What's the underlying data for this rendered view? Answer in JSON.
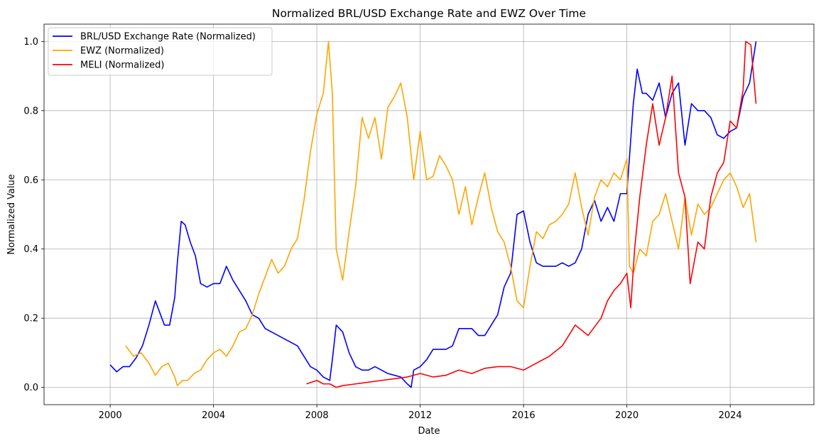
{
  "chart_data": {
    "type": "line",
    "title": "Normalized BRL/USD Exchange Rate and EWZ Over Time",
    "xlabel": "Date",
    "ylabel": "Normalized Value",
    "xlim": [
      1997.44,
      2027.24
    ],
    "ylim": [
      -0.05,
      1.05
    ],
    "x_ticks": [
      2000,
      2004,
      2008,
      2012,
      2016,
      2020,
      2024
    ],
    "x_tick_labels": [
      "2000",
      "2004",
      "2008",
      "2012",
      "2016",
      "2020",
      "2024"
    ],
    "y_ticks": [
      0.0,
      0.2,
      0.4,
      0.6,
      0.8,
      1.0
    ],
    "y_tick_labels": [
      "0.0",
      "0.2",
      "0.4",
      "0.6",
      "0.8",
      "1.0"
    ],
    "grid": true,
    "legend_position": "top-left",
    "series": [
      {
        "name": "BRL/USD Exchange Rate (Normalized)",
        "color": "#0000ff",
        "points": [
          [
            2000.0,
            0.065
          ],
          [
            2000.25,
            0.045
          ],
          [
            2000.5,
            0.06
          ],
          [
            2000.75,
            0.06
          ],
          [
            2001.0,
            0.085
          ],
          [
            2001.25,
            0.12
          ],
          [
            2001.5,
            0.18
          ],
          [
            2001.75,
            0.25
          ],
          [
            2001.9,
            0.22
          ],
          [
            2002.1,
            0.18
          ],
          [
            2002.3,
            0.18
          ],
          [
            2002.5,
            0.26
          ],
          [
            2002.6,
            0.36
          ],
          [
            2002.75,
            0.48
          ],
          [
            2002.9,
            0.47
          ],
          [
            2003.1,
            0.42
          ],
          [
            2003.3,
            0.38
          ],
          [
            2003.5,
            0.3
          ],
          [
            2003.75,
            0.29
          ],
          [
            2004.0,
            0.3
          ],
          [
            2004.25,
            0.3
          ],
          [
            2004.5,
            0.35
          ],
          [
            2004.75,
            0.31
          ],
          [
            2005.0,
            0.28
          ],
          [
            2005.25,
            0.25
          ],
          [
            2005.5,
            0.21
          ],
          [
            2005.75,
            0.2
          ],
          [
            2006.0,
            0.17
          ],
          [
            2006.25,
            0.16
          ],
          [
            2006.5,
            0.15
          ],
          [
            2006.75,
            0.14
          ],
          [
            2007.0,
            0.13
          ],
          [
            2007.25,
            0.12
          ],
          [
            2007.5,
            0.09
          ],
          [
            2007.75,
            0.06
          ],
          [
            2008.0,
            0.05
          ],
          [
            2008.25,
            0.03
          ],
          [
            2008.5,
            0.02
          ],
          [
            2008.6,
            0.08
          ],
          [
            2008.75,
            0.18
          ],
          [
            2009.0,
            0.16
          ],
          [
            2009.25,
            0.1
          ],
          [
            2009.5,
            0.06
          ],
          [
            2009.75,
            0.05
          ],
          [
            2010.0,
            0.05
          ],
          [
            2010.25,
            0.06
          ],
          [
            2010.5,
            0.05
          ],
          [
            2010.75,
            0.04
          ],
          [
            2011.0,
            0.035
          ],
          [
            2011.25,
            0.03
          ],
          [
            2011.5,
            0.01
          ],
          [
            2011.65,
            0.0
          ],
          [
            2011.75,
            0.05
          ],
          [
            2012.0,
            0.06
          ],
          [
            2012.25,
            0.08
          ],
          [
            2012.5,
            0.11
          ],
          [
            2012.75,
            0.11
          ],
          [
            2013.0,
            0.11
          ],
          [
            2013.25,
            0.12
          ],
          [
            2013.5,
            0.17
          ],
          [
            2013.75,
            0.17
          ],
          [
            2014.0,
            0.17
          ],
          [
            2014.25,
            0.15
          ],
          [
            2014.5,
            0.15
          ],
          [
            2014.75,
            0.18
          ],
          [
            2015.0,
            0.21
          ],
          [
            2015.25,
            0.29
          ],
          [
            2015.5,
            0.33
          ],
          [
            2015.75,
            0.5
          ],
          [
            2016.0,
            0.51
          ],
          [
            2016.25,
            0.42
          ],
          [
            2016.5,
            0.36
          ],
          [
            2016.75,
            0.35
          ],
          [
            2017.0,
            0.35
          ],
          [
            2017.25,
            0.35
          ],
          [
            2017.5,
            0.36
          ],
          [
            2017.75,
            0.35
          ],
          [
            2018.0,
            0.36
          ],
          [
            2018.25,
            0.4
          ],
          [
            2018.5,
            0.5
          ],
          [
            2018.75,
            0.54
          ],
          [
            2019.0,
            0.48
          ],
          [
            2019.25,
            0.52
          ],
          [
            2019.5,
            0.48
          ],
          [
            2019.75,
            0.56
          ],
          [
            2020.0,
            0.56
          ],
          [
            2020.25,
            0.82
          ],
          [
            2020.4,
            0.92
          ],
          [
            2020.6,
            0.85
          ],
          [
            2020.75,
            0.85
          ],
          [
            2021.0,
            0.83
          ],
          [
            2021.25,
            0.88
          ],
          [
            2021.5,
            0.78
          ],
          [
            2021.75,
            0.85
          ],
          [
            2022.0,
            0.88
          ],
          [
            2022.25,
            0.7
          ],
          [
            2022.5,
            0.82
          ],
          [
            2022.75,
            0.8
          ],
          [
            2023.0,
            0.8
          ],
          [
            2023.25,
            0.78
          ],
          [
            2023.5,
            0.73
          ],
          [
            2023.75,
            0.72
          ],
          [
            2024.0,
            0.74
          ],
          [
            2024.25,
            0.75
          ],
          [
            2024.5,
            0.84
          ],
          [
            2024.75,
            0.88
          ],
          [
            2025.0,
            1.0
          ]
        ]
      },
      {
        "name": "EWZ (Normalized)",
        "color": "#ffa500",
        "points": [
          [
            2000.6,
            0.12
          ],
          [
            2000.9,
            0.09
          ],
          [
            2001.2,
            0.1
          ],
          [
            2001.5,
            0.07
          ],
          [
            2001.75,
            0.035
          ],
          [
            2002.0,
            0.06
          ],
          [
            2002.25,
            0.07
          ],
          [
            2002.5,
            0.03
          ],
          [
            2002.6,
            0.005
          ],
          [
            2002.8,
            0.02
          ],
          [
            2003.0,
            0.02
          ],
          [
            2003.25,
            0.04
          ],
          [
            2003.5,
            0.05
          ],
          [
            2003.75,
            0.08
          ],
          [
            2004.0,
            0.1
          ],
          [
            2004.25,
            0.11
          ],
          [
            2004.5,
            0.09
          ],
          [
            2004.75,
            0.12
          ],
          [
            2005.0,
            0.16
          ],
          [
            2005.25,
            0.17
          ],
          [
            2005.5,
            0.21
          ],
          [
            2005.75,
            0.27
          ],
          [
            2006.0,
            0.32
          ],
          [
            2006.25,
            0.37
          ],
          [
            2006.5,
            0.33
          ],
          [
            2006.75,
            0.35
          ],
          [
            2007.0,
            0.4
          ],
          [
            2007.25,
            0.43
          ],
          [
            2007.5,
            0.54
          ],
          [
            2007.75,
            0.68
          ],
          [
            2008.0,
            0.79
          ],
          [
            2008.25,
            0.85
          ],
          [
            2008.45,
            1.0
          ],
          [
            2008.6,
            0.85
          ],
          [
            2008.75,
            0.4
          ],
          [
            2009.0,
            0.31
          ],
          [
            2009.25,
            0.45
          ],
          [
            2009.5,
            0.58
          ],
          [
            2009.75,
            0.78
          ],
          [
            2010.0,
            0.72
          ],
          [
            2010.25,
            0.78
          ],
          [
            2010.5,
            0.66
          ],
          [
            2010.75,
            0.81
          ],
          [
            2011.0,
            0.84
          ],
          [
            2011.25,
            0.88
          ],
          [
            2011.5,
            0.78
          ],
          [
            2011.75,
            0.6
          ],
          [
            2012.0,
            0.74
          ],
          [
            2012.25,
            0.6
          ],
          [
            2012.5,
            0.61
          ],
          [
            2012.75,
            0.67
          ],
          [
            2013.0,
            0.64
          ],
          [
            2013.25,
            0.6
          ],
          [
            2013.5,
            0.5
          ],
          [
            2013.75,
            0.58
          ],
          [
            2014.0,
            0.47
          ],
          [
            2014.25,
            0.55
          ],
          [
            2014.5,
            0.62
          ],
          [
            2014.75,
            0.52
          ],
          [
            2015.0,
            0.45
          ],
          [
            2015.25,
            0.42
          ],
          [
            2015.5,
            0.35
          ],
          [
            2015.75,
            0.25
          ],
          [
            2016.0,
            0.23
          ],
          [
            2016.25,
            0.35
          ],
          [
            2016.5,
            0.45
          ],
          [
            2016.75,
            0.43
          ],
          [
            2017.0,
            0.47
          ],
          [
            2017.25,
            0.48
          ],
          [
            2017.5,
            0.5
          ],
          [
            2017.75,
            0.53
          ],
          [
            2018.0,
            0.62
          ],
          [
            2018.25,
            0.52
          ],
          [
            2018.5,
            0.44
          ],
          [
            2018.75,
            0.55
          ],
          [
            2019.0,
            0.6
          ],
          [
            2019.25,
            0.58
          ],
          [
            2019.5,
            0.62
          ],
          [
            2019.75,
            0.6
          ],
          [
            2020.0,
            0.66
          ],
          [
            2020.1,
            0.35
          ],
          [
            2020.25,
            0.33
          ],
          [
            2020.5,
            0.4
          ],
          [
            2020.75,
            0.38
          ],
          [
            2021.0,
            0.48
          ],
          [
            2021.25,
            0.5
          ],
          [
            2021.5,
            0.56
          ],
          [
            2021.75,
            0.48
          ],
          [
            2022.0,
            0.4
          ],
          [
            2022.25,
            0.55
          ],
          [
            2022.5,
            0.44
          ],
          [
            2022.75,
            0.53
          ],
          [
            2023.0,
            0.5
          ],
          [
            2023.25,
            0.52
          ],
          [
            2023.5,
            0.56
          ],
          [
            2023.75,
            0.6
          ],
          [
            2024.0,
            0.62
          ],
          [
            2024.25,
            0.58
          ],
          [
            2024.5,
            0.52
          ],
          [
            2024.75,
            0.56
          ],
          [
            2025.0,
            0.42
          ]
        ]
      },
      {
        "name": "MELI (Normalized)",
        "color": "#ff0000",
        "points": [
          [
            2007.6,
            0.01
          ],
          [
            2008.0,
            0.02
          ],
          [
            2008.25,
            0.01
          ],
          [
            2008.5,
            0.01
          ],
          [
            2008.75,
            0.0
          ],
          [
            2009.0,
            0.005
          ],
          [
            2009.5,
            0.01
          ],
          [
            2010.0,
            0.015
          ],
          [
            2010.5,
            0.02
          ],
          [
            2011.0,
            0.025
          ],
          [
            2011.5,
            0.03
          ],
          [
            2012.0,
            0.04
          ],
          [
            2012.5,
            0.03
          ],
          [
            2013.0,
            0.035
          ],
          [
            2013.5,
            0.05
          ],
          [
            2014.0,
            0.04
          ],
          [
            2014.5,
            0.055
          ],
          [
            2015.0,
            0.06
          ],
          [
            2015.5,
            0.06
          ],
          [
            2016.0,
            0.05
          ],
          [
            2016.5,
            0.07
          ],
          [
            2017.0,
            0.09
          ],
          [
            2017.5,
            0.12
          ],
          [
            2018.0,
            0.18
          ],
          [
            2018.5,
            0.15
          ],
          [
            2019.0,
            0.2
          ],
          [
            2019.25,
            0.25
          ],
          [
            2019.5,
            0.28
          ],
          [
            2019.75,
            0.3
          ],
          [
            2020.0,
            0.33
          ],
          [
            2020.15,
            0.23
          ],
          [
            2020.3,
            0.4
          ],
          [
            2020.5,
            0.55
          ],
          [
            2020.75,
            0.7
          ],
          [
            2021.0,
            0.82
          ],
          [
            2021.25,
            0.7
          ],
          [
            2021.5,
            0.78
          ],
          [
            2021.75,
            0.9
          ],
          [
            2022.0,
            0.62
          ],
          [
            2022.25,
            0.55
          ],
          [
            2022.45,
            0.3
          ],
          [
            2022.75,
            0.42
          ],
          [
            2023.0,
            0.4
          ],
          [
            2023.25,
            0.55
          ],
          [
            2023.5,
            0.62
          ],
          [
            2023.75,
            0.65
          ],
          [
            2024.0,
            0.77
          ],
          [
            2024.25,
            0.75
          ],
          [
            2024.5,
            0.86
          ],
          [
            2024.6,
            1.0
          ],
          [
            2024.8,
            0.99
          ],
          [
            2025.0,
            0.82
          ]
        ]
      }
    ]
  }
}
